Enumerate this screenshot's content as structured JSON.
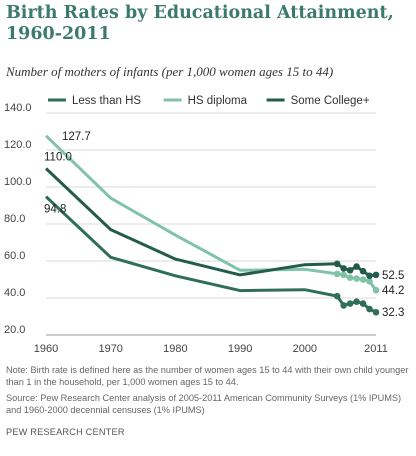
{
  "title": "Birth Rates by Educational Attainment, 1960-2011",
  "subtitle": "Number of mothers of infants (per 1,000 women ages 15 to 44)",
  "note": "Note: Birth rate is defined here as the number of women ages 15 to 44 with their own child younger than 1 in the household, per 1,000 women ages 15 to 44.",
  "source": "Source: Pew Research Center analysis of 2005-2011 American Community Surveys (1% IPUMS) and 1960-2000 decennial censuses (1% IPUMS)",
  "credit": "PEW RESEARCH CENTER",
  "chart_data": {
    "type": "line",
    "title": "Birth Rates by Educational Attainment, 1960-2011",
    "xlabel": "",
    "ylabel": "",
    "xlim": [
      1960,
      2011
    ],
    "ylim": [
      20,
      140
    ],
    "x_ticks": [
      "1960",
      "1970",
      "1980",
      "1990",
      "2000",
      "2011"
    ],
    "x_tick_values": [
      1960,
      1970,
      1980,
      1990,
      2000,
      2011
    ],
    "y_ticks": [
      "20.0",
      "40.0",
      "60.0",
      "80.0",
      "100.0",
      "120.0",
      "140.0"
    ],
    "y_tick_values": [
      20,
      40,
      60,
      80,
      100,
      120,
      140
    ],
    "grid": "horizontal",
    "legend_position": "top",
    "series": [
      {
        "name": "Less than HS",
        "color": "#2f6e5a",
        "x": [
          1960,
          1970,
          1980,
          1990,
          2000,
          2005,
          2006,
          2007,
          2008,
          2009,
          2010,
          2011
        ],
        "y": [
          94.8,
          62,
          52,
          44,
          44.5,
          41,
          36,
          37,
          38,
          37,
          34,
          32.3
        ]
      },
      {
        "name": "HS diploma",
        "color": "#80c3a8",
        "x": [
          1960,
          1970,
          1980,
          1990,
          2000,
          2005,
          2006,
          2007,
          2008,
          2009,
          2010,
          2011
        ],
        "y": [
          127.7,
          94,
          74,
          55,
          55.5,
          53,
          52.5,
          51,
          50.5,
          50,
          49,
          44.2
        ]
      },
      {
        "name": "Some College+",
        "color": "#245c4c",
        "x": [
          1960,
          1970,
          1980,
          1990,
          2000,
          2005,
          2006,
          2007,
          2008,
          2009,
          2010,
          2011
        ],
        "y": [
          110.0,
          77,
          61,
          52.5,
          58,
          58.5,
          56,
          55,
          57,
          54.5,
          52,
          52.5
        ]
      }
    ],
    "annotations": [
      {
        "text": "127.7",
        "series": 1,
        "x": 1960
      },
      {
        "text": "110.0",
        "series": 2,
        "x": 1960
      },
      {
        "text": "94.8",
        "series": 0,
        "x": 1960
      },
      {
        "text": "52.5",
        "series": 2,
        "x": 2011
      },
      {
        "text": "44.2",
        "series": 1,
        "x": 2011
      },
      {
        "text": "32.3",
        "series": 0,
        "x": 2011
      }
    ]
  }
}
